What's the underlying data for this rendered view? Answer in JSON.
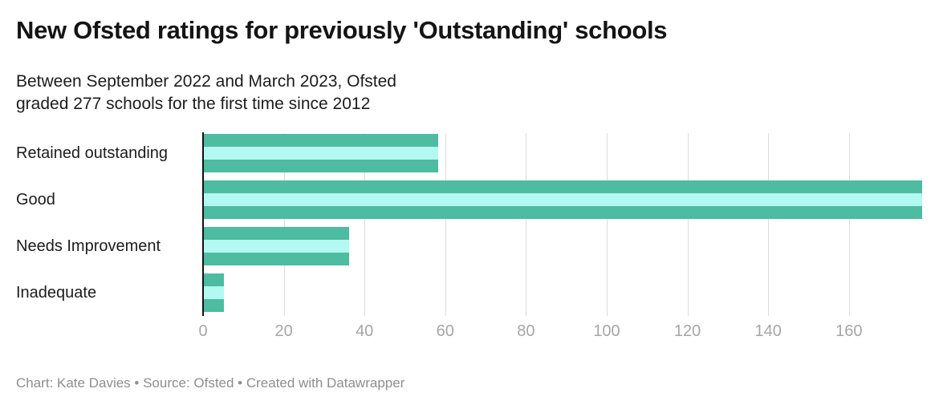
{
  "header": {
    "title": "New Ofsted ratings for previously 'Outstanding' schools",
    "subtitle_line1": "Between September 2022 and March 2023, Ofsted",
    "subtitle_line2": "graded 277 schools for the first time since 2012"
  },
  "chart_data": {
    "type": "bar",
    "orientation": "horizontal",
    "title": "New Ofsted ratings for previously 'Outstanding' schools",
    "subtitle": "Between September 2022 and March 2023, Ofsted graded 277 schools for the first time since 2012",
    "categories": [
      "Retained outstanding",
      "Good",
      "Needs Improvement",
      "Inadequate"
    ],
    "values": [
      58,
      178,
      36,
      5
    ],
    "total_schools": 277,
    "x_ticks": [
      0,
      20,
      40,
      60,
      80,
      100,
      120,
      140,
      160
    ],
    "xlim": [
      0,
      182
    ],
    "xlabel": "",
    "ylabel": "",
    "grid": true,
    "legend": "none"
  },
  "footer": {
    "credit": "Chart: Kate Davies • Source: Ofsted • Created with Datawrapper"
  },
  "colors": {
    "bar_stripe_dark": "#4dbca1",
    "bar_stripe_light": "#b4f8f2",
    "axis_line": "#121212",
    "gridline": "#dcdcdc",
    "tick_label": "#a6a6a6",
    "text": "#1c1c1c",
    "footer_text": "#8e8e8e",
    "background": "#ffffff"
  }
}
